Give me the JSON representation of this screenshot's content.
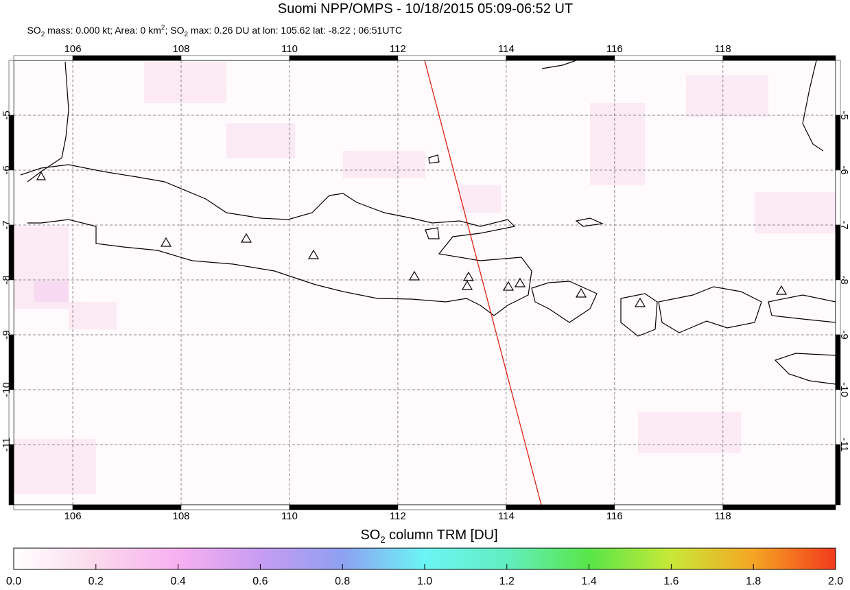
{
  "title": "Suomi NPP/OMPS - 10/18/2015 05:09-06:52 UT",
  "subtitle": [
    "SO",
    "2",
    " mass: 0.000 kt; Area: 0 km",
    "2",
    "; SO",
    "2",
    " max: 0.26 DU at lon: 105.62 lat: -8.22 ; 06:51UTC"
  ],
  "map": {
    "lon_range": [
      104.91,
      120.08
    ],
    "lat_range": [
      -4.0,
      -12.1
    ],
    "lon_ticks": [
      106,
      108,
      110,
      112,
      114,
      116,
      118
    ],
    "lat_ticks": [
      -5,
      -6,
      -7,
      -8,
      -9,
      -10,
      -11
    ]
  },
  "colorbar": {
    "label": [
      "SO",
      "2",
      " column TRM [DU]"
    ],
    "range": [
      0,
      2
    ],
    "ticks": [
      {
        "value": 0,
        "label": "0.0"
      },
      {
        "value": 0.2,
        "label": "0.2"
      },
      {
        "value": 0.4,
        "label": "0.4"
      },
      {
        "value": 0.6,
        "label": "0.6"
      },
      {
        "value": 0.8,
        "label": "0.8"
      },
      {
        "value": 1,
        "label": "1.0"
      },
      {
        "value": 1.2,
        "label": "1.2"
      },
      {
        "value": 1.4,
        "label": "1.4"
      },
      {
        "value": 1.6,
        "label": "1.6"
      },
      {
        "value": 1.8,
        "label": "1.8"
      },
      {
        "value": 2,
        "label": "2.0"
      }
    ]
  }
}
